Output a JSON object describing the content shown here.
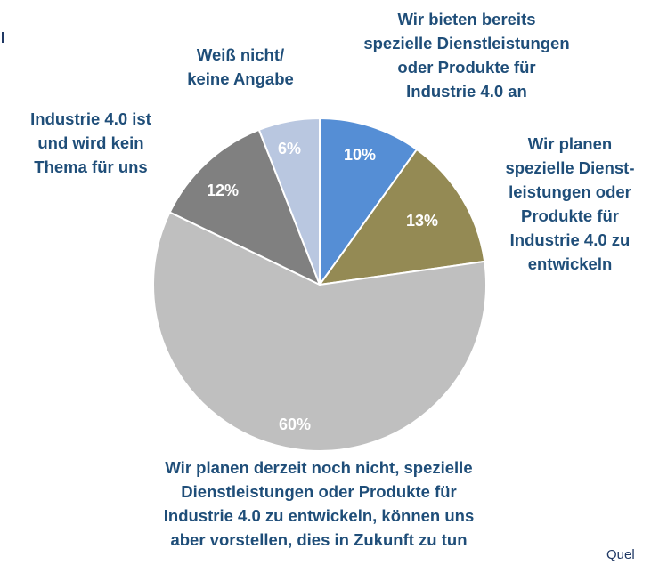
{
  "chart_data": {
    "type": "pie",
    "categories": [
      "Wir bieten bereits\nspezielle Dienstleistungen\noder Produkte für\nIndustrie 4.0 an",
      "Wir planen\nspezielle Dienst-\nleistungen oder\nProdukte für\nIndustrie 4.0 zu\nentwickeln",
      "Wir planen derzeit noch nicht, spezielle\nDienstleistungen oder Produkte für\nIndustrie 4.0 zu entwickeln, können uns\naber vorstellen, dies in Zukunft zu tun",
      "Industrie 4.0 ist\nund wird kein\nThema für uns",
      "Weiß nicht/\nkeine Angabe"
    ],
    "values": [
      10,
      13,
      60,
      12,
      6
    ],
    "value_labels": [
      "10%",
      "13%",
      "60%",
      "12%",
      "6%"
    ],
    "colors": [
      "#558ed5",
      "#948a54",
      "#bfbfbf",
      "#808080",
      "#b9c7e0"
    ],
    "source": "Quel"
  }
}
